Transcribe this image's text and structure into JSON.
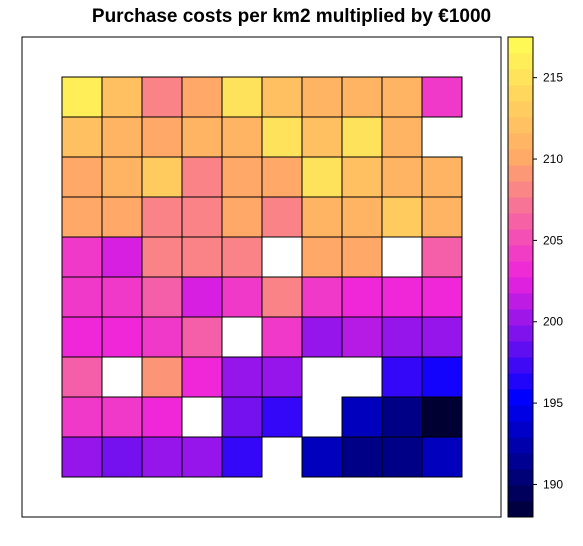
{
  "chart_data": {
    "type": "heatmap",
    "title": "Purchase costs per km2 multiplied by €1000",
    "xlabel": "",
    "ylabel": "",
    "rows": 10,
    "cols": 10,
    "row_order": "top-to-bottom",
    "values": [
      [
        216,
        212,
        208,
        210,
        215,
        212,
        211,
        211,
        211,
        204
      ],
      [
        212,
        211,
        210,
        211,
        211,
        215,
        212,
        215,
        211,
        null
      ],
      [
        210,
        211,
        213,
        208,
        210,
        210,
        215,
        212,
        211,
        211
      ],
      [
        210,
        210,
        208,
        208,
        210,
        208,
        211,
        211,
        213,
        211
      ],
      [
        204,
        202,
        208,
        208,
        208,
        null,
        210,
        210,
        null,
        206
      ],
      [
        204,
        204,
        206,
        202,
        204,
        208,
        204,
        203,
        203,
        203
      ],
      [
        203,
        203,
        204,
        206,
        null,
        204,
        200,
        201,
        200,
        200
      ],
      [
        206,
        null,
        209,
        203,
        200,
        200,
        null,
        null,
        197,
        196
      ],
      [
        204,
        204,
        203,
        null,
        199,
        197,
        null,
        193,
        191,
        188
      ],
      [
        200,
        199,
        200,
        200,
        197,
        null,
        193,
        191,
        191,
        193
      ]
    ],
    "colorbar": {
      "min": 188,
      "max": 217.5,
      "ticks": [
        190,
        195,
        200,
        205,
        210,
        215
      ],
      "tick_labels": [
        "190",
        "195",
        "200",
        "205",
        "210",
        "215"
      ],
      "stops": [
        "#000033",
        "#0000ff",
        "#ee22dd",
        "#ffaa66",
        "#ffff55"
      ],
      "position": "right"
    },
    "grid": false,
    "missing_color": "#ffffff"
  }
}
